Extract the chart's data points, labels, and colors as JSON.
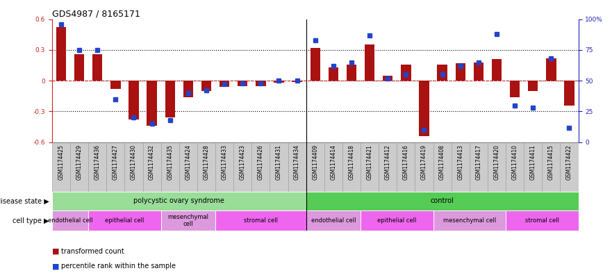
{
  "title": "GDS4987 / 8165171",
  "samples": [
    "GSM1174425",
    "GSM1174429",
    "GSM1174436",
    "GSM1174427",
    "GSM1174430",
    "GSM1174432",
    "GSM1174435",
    "GSM1174424",
    "GSM1174428",
    "GSM1174433",
    "GSM1174423",
    "GSM1174426",
    "GSM1174431",
    "GSM1174434",
    "GSM1174409",
    "GSM1174414",
    "GSM1174418",
    "GSM1174421",
    "GSM1174412",
    "GSM1174416",
    "GSM1174419",
    "GSM1174408",
    "GSM1174413",
    "GSM1174417",
    "GSM1174420",
    "GSM1174410",
    "GSM1174411",
    "GSM1174415",
    "GSM1174422"
  ],
  "bar_values": [
    0.52,
    0.26,
    0.26,
    -0.08,
    -0.38,
    -0.44,
    -0.36,
    -0.16,
    -0.1,
    -0.06,
    -0.05,
    -0.05,
    -0.02,
    -0.01,
    0.32,
    0.13,
    0.16,
    0.35,
    0.05,
    0.16,
    -0.54,
    0.16,
    0.17,
    0.18,
    0.21,
    -0.16,
    -0.1,
    0.22,
    -0.24
  ],
  "dot_values": [
    96,
    75,
    75,
    35,
    20,
    15,
    18,
    40,
    42,
    47,
    48,
    48,
    50,
    50,
    83,
    62,
    65,
    87,
    52,
    55,
    10,
    55,
    62,
    65,
    88,
    30,
    28,
    68,
    12
  ],
  "ylim_left": [
    -0.6,
    0.6
  ],
  "ylim_right": [
    0,
    100
  ],
  "yticks_left": [
    -0.6,
    -0.3,
    0.0,
    0.3,
    0.6
  ],
  "ytick_labels_left": [
    "-0.6",
    "-0.3",
    "0",
    "0.3",
    "0.6"
  ],
  "yticks_right": [
    0,
    25,
    50,
    75,
    100
  ],
  "ytick_labels_right": [
    "0",
    "25",
    "50",
    "75",
    "100%"
  ],
  "bar_color": "#aa1111",
  "dot_color": "#2244cc",
  "disease_state_groups": [
    {
      "label": "polycystic ovary syndrome",
      "start": 0,
      "end": 14,
      "color": "#99dd99"
    },
    {
      "label": "control",
      "start": 14,
      "end": 29,
      "color": "#55cc55"
    }
  ],
  "cell_type_groups": [
    {
      "label": "endothelial cell",
      "start": 0,
      "end": 2,
      "color": "#dd99dd"
    },
    {
      "label": "epithelial cell",
      "start": 2,
      "end": 6,
      "color": "#ee66ee"
    },
    {
      "label": "mesenchymal\ncell",
      "start": 6,
      "end": 9,
      "color": "#dd99dd"
    },
    {
      "label": "stromal cell",
      "start": 9,
      "end": 14,
      "color": "#ee66ee"
    },
    {
      "label": "endothelial cell",
      "start": 14,
      "end": 17,
      "color": "#dd99dd"
    },
    {
      "label": "epithelial cell",
      "start": 17,
      "end": 21,
      "color": "#ee66ee"
    },
    {
      "label": "mesenchymal cell",
      "start": 21,
      "end": 25,
      "color": "#dd99dd"
    },
    {
      "label": "stromal cell",
      "start": 25,
      "end": 29,
      "color": "#ee66ee"
    }
  ],
  "legend_items": [
    {
      "label": "transformed count",
      "color": "#aa1111"
    },
    {
      "label": "percentile rank within the sample",
      "color": "#2244cc"
    }
  ],
  "left_color": "#cc2222",
  "right_color": "#2222bb",
  "sep_index": 13.5,
  "background_color": "#ffffff",
  "tick_area_color": "#cccccc",
  "title_fontsize": 9,
  "tick_fontsize": 5.5,
  "label_fontsize": 7,
  "annot_fontsize": 7
}
